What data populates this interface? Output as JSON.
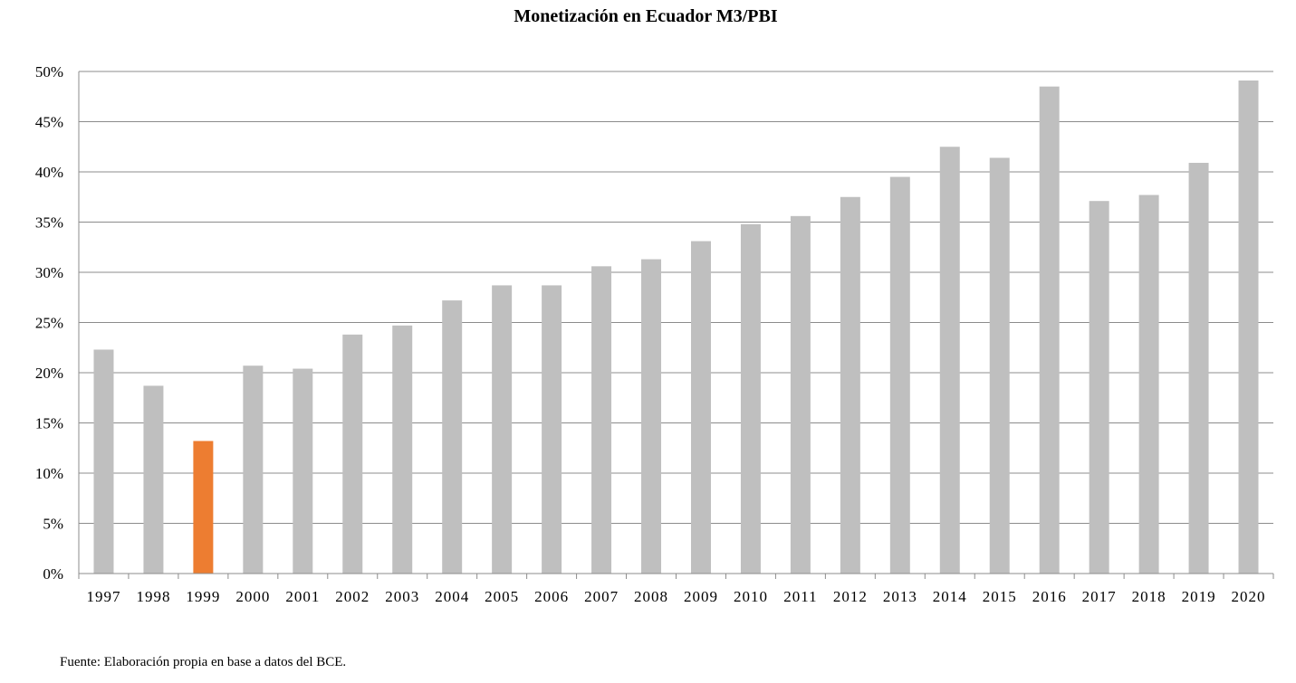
{
  "chart_data": {
    "type": "bar",
    "title": "Monetización en Ecuador M3/PBI",
    "categories": [
      "1997",
      "1998",
      "1999",
      "2000",
      "2001",
      "2002",
      "2003",
      "2004",
      "2005",
      "2006",
      "2007",
      "2008",
      "2009",
      "2010",
      "2011",
      "2012",
      "2013",
      "2014",
      "2015",
      "2016",
      "2017",
      "2018",
      "2019",
      "2020"
    ],
    "values": [
      22.3,
      18.7,
      13.2,
      20.7,
      20.4,
      23.8,
      24.7,
      27.2,
      28.7,
      28.7,
      30.6,
      31.3,
      33.1,
      34.8,
      35.6,
      37.5,
      39.5,
      42.5,
      41.4,
      48.5,
      37.1,
      37.7,
      40.9,
      49.1
    ],
    "ylim": [
      0,
      50
    ],
    "ytick_step": 5,
    "ytick_labels": [
      "0%",
      "5%",
      "10%",
      "15%",
      "20%",
      "25%",
      "30%",
      "35%",
      "40%",
      "45%",
      "50%"
    ],
    "grid": true,
    "bar_color": "#bfbfbf",
    "highlight_category": "1999",
    "highlight_color": "#ed7d31",
    "source": "Fuente: Elaboración propia en base a datos del BCE."
  }
}
